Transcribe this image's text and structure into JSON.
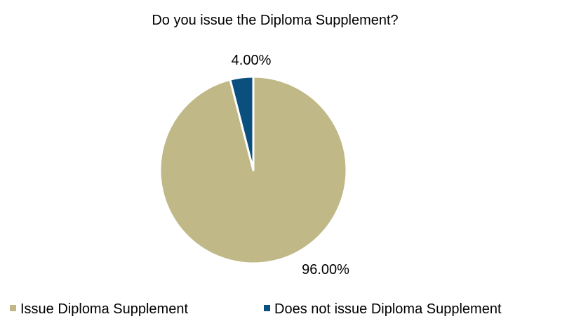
{
  "chart_data": {
    "type": "pie",
    "title": "Do you issue the Diploma Supplement?",
    "slices": [
      {
        "label": "Issue Diploma Supplement",
        "value": 96.0,
        "display": "96.00%",
        "color": "#C0B987"
      },
      {
        "label": "Does not issue Diploma Supplement",
        "value": 4.0,
        "display": "4.00%",
        "color": "#0B4F7F"
      }
    ],
    "start_angle_deg": 0,
    "direction": "clockwise",
    "slice_border_color": "#FFFFFF",
    "legend_position": "bottom"
  }
}
